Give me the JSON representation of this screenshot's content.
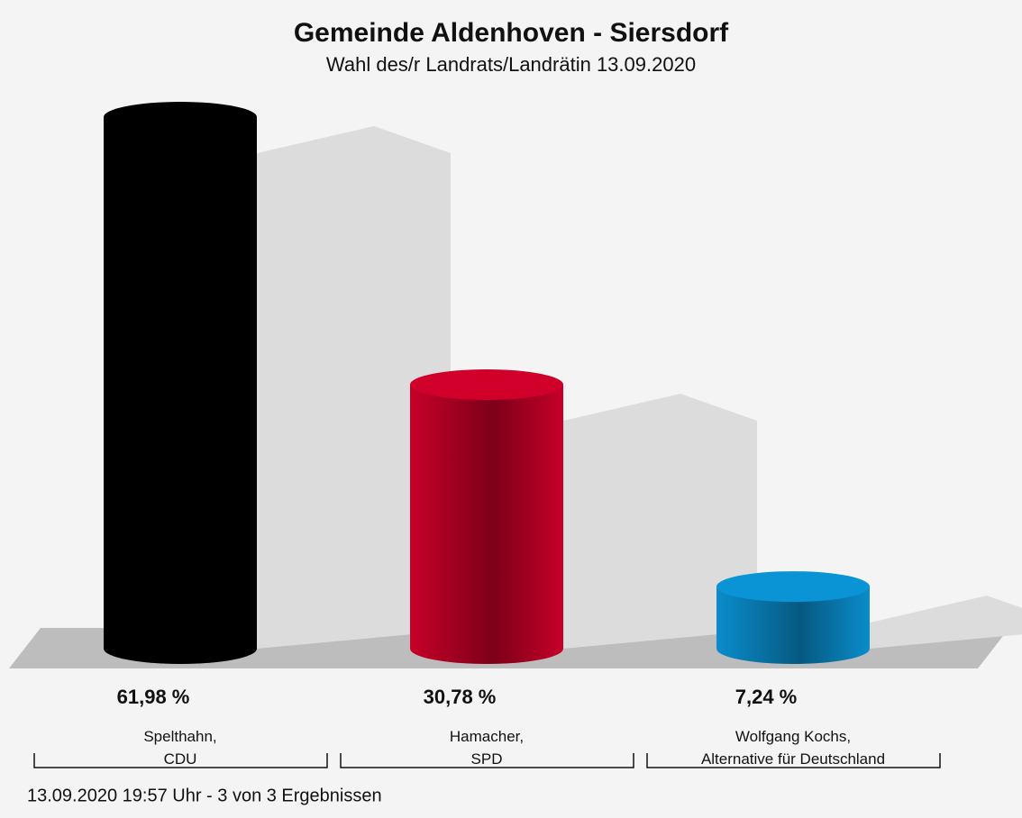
{
  "chart_data": {
    "type": "bar",
    "title": "Gemeinde Aldenhoven - Siersdorf",
    "subtitle": "Wahl des/r Landrats/Landrätin 13.09.2020",
    "categories": [
      "Spelthahn,\nCDU",
      "Hamacher,\nSPD",
      "Wolfgang Kochs,\nAlternative für Deutschland"
    ],
    "values": [
      61.98,
      30.78,
      7.24
    ],
    "value_labels": [
      "61,98 %",
      "30,78 %",
      "7,24 %"
    ],
    "colors": [
      "#000000",
      "#d0002a",
      "#0a94d6"
    ],
    "footer": "13.09.2020 19:57 Uhr - 3 von 3 Ergebnissen"
  }
}
